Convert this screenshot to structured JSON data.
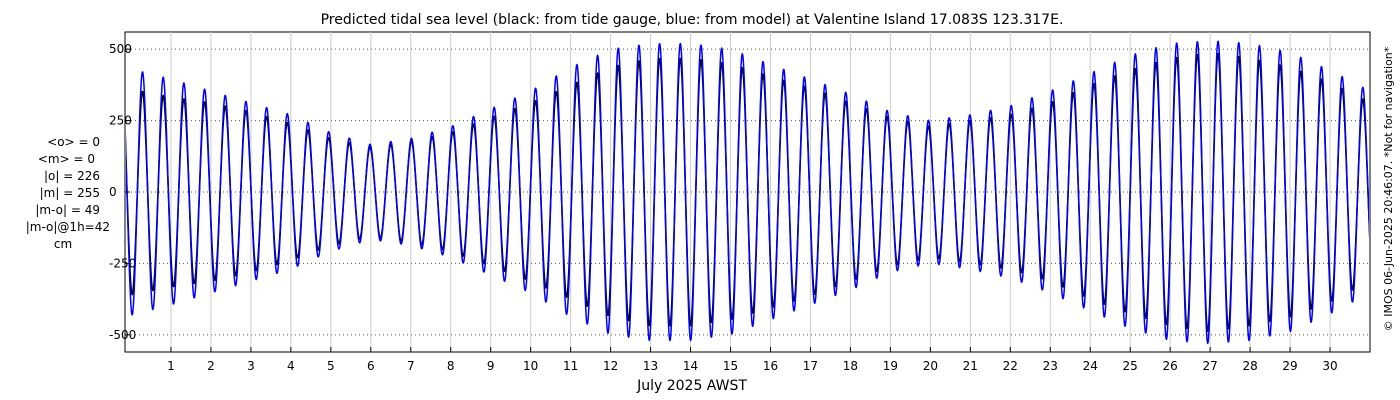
{
  "chart_data": {
    "type": "line",
    "title": "Predicted tidal sea level (black: from tide gauge, blue: from model) at Valentine Island 17.083S 123.317E.",
    "xlabel": "July 2025 AWST",
    "ylabel": "",
    "ylim": [
      -560,
      560
    ],
    "xlim": [
      -0.15,
      31.0
    ],
    "y_ticks": [
      -500,
      -250,
      0,
      250,
      500
    ],
    "y_tick_labels": [
      "-500",
      "-250",
      "0",
      "250",
      "500"
    ],
    "x_ticks": [
      1,
      2,
      3,
      4,
      5,
      6,
      7,
      8,
      9,
      10,
      11,
      12,
      13,
      14,
      15,
      16,
      17,
      18,
      19,
      20,
      21,
      22,
      23,
      24,
      25,
      26,
      27,
      28,
      29,
      30
    ],
    "x_tick_labels": [
      "1",
      "2",
      "3",
      "4",
      "5",
      "6",
      "7",
      "8",
      "9",
      "10",
      "11",
      "12",
      "13",
      "14",
      "15",
      "16",
      "17",
      "18",
      "19",
      "20",
      "21",
      "22",
      "23",
      "24",
      "25",
      "26",
      "27",
      "28",
      "29",
      "30"
    ],
    "grid": true,
    "legend_position": "none (colours described in title)",
    "stats_lines": [
      "<o> = 0",
      "<m> = 0",
      "|o| = 226",
      "|m| = 255",
      "|m-o| = 49",
      "|m-o|@1h=42",
      "cm"
    ],
    "copyright": "© IMOS 06-Jun-2025 20:46:07. *Not for navigation*",
    "colors": {
      "observed": "#000000",
      "model": "#0000ff",
      "grid": "#555555"
    },
    "series": [
      {
        "name": "from tide gauge",
        "color": "#000000",
        "amplitude_day": [
          -0.15,
          1,
          2,
          3,
          4,
          5,
          6,
          7,
          8,
          9,
          10,
          11,
          12,
          13,
          14,
          15,
          16,
          17,
          18,
          19,
          20,
          21,
          22,
          23,
          24,
          25,
          26,
          27,
          28,
          29,
          30,
          31
        ],
        "amplitude_cm": [
          350,
          320,
          300,
          270,
          230,
          180,
          150,
          170,
          200,
          250,
          300,
          360,
          420,
          450,
          450,
          430,
          390,
          350,
          300,
          250,
          220,
          240,
          260,
          300,
          360,
          410,
          450,
          470,
          450,
          420,
          370,
          300
        ],
        "period_hours": 12.42,
        "phase_hours": 5.0
      },
      {
        "name": "from model",
        "color": "#0000ff",
        "amplitude_day": [
          -0.15,
          1,
          2,
          3,
          4,
          5,
          6,
          7,
          8,
          9,
          10,
          11,
          12,
          13,
          14,
          15,
          16,
          17,
          18,
          19,
          20,
          21,
          22,
          23,
          24,
          25,
          26,
          27,
          28,
          29,
          30,
          31
        ],
        "amplitude_cm": [
          420,
          380,
          340,
          300,
          260,
          200,
          160,
          180,
          220,
          280,
          340,
          420,
          480,
          500,
          500,
          480,
          430,
          380,
          330,
          270,
          240,
          260,
          290,
          340,
          400,
          460,
          500,
          510,
          500,
          470,
          410,
          340
        ],
        "period_hours": 12.42,
        "phase_hours": 5.0
      }
    ]
  }
}
